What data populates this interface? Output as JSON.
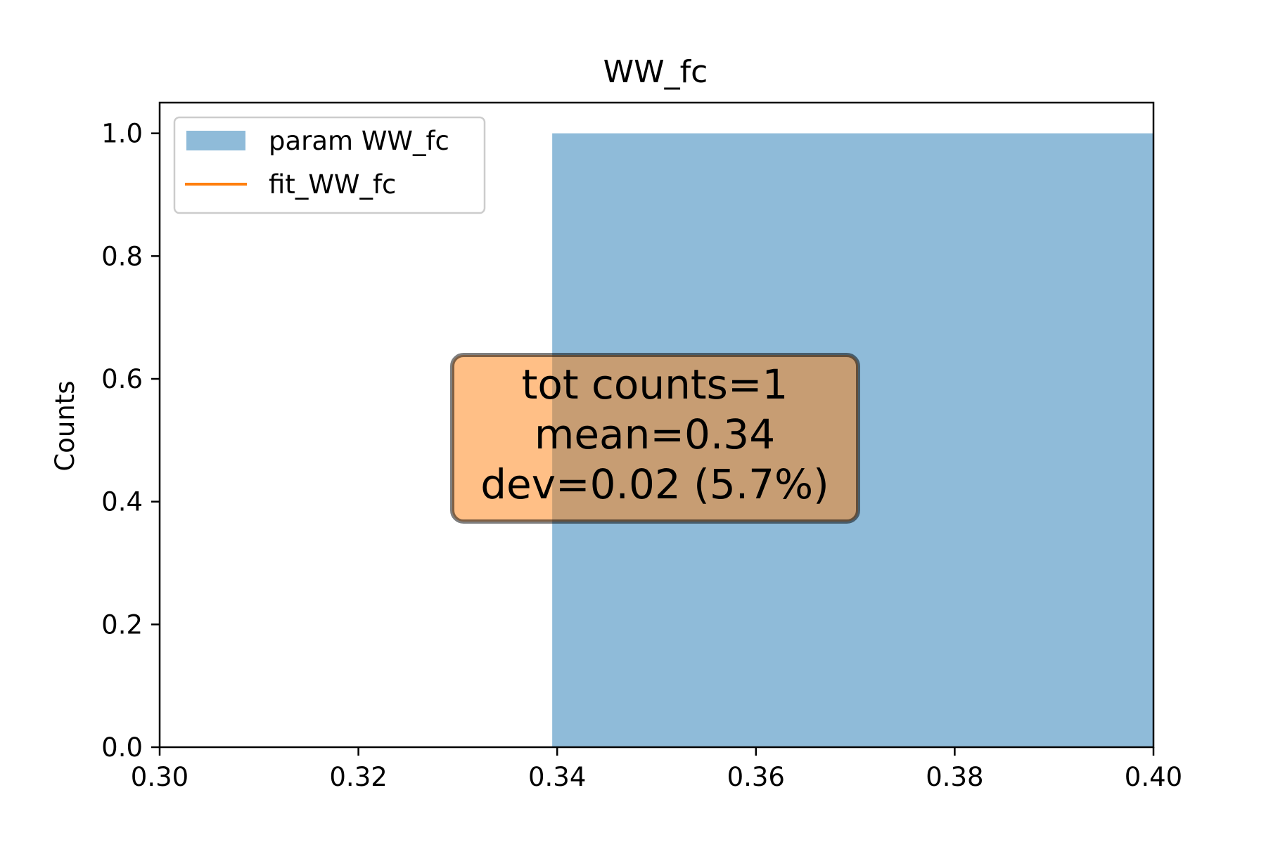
{
  "chart_data": {
    "type": "bar",
    "title": "WW_fc",
    "xlabel": "",
    "ylabel": "Counts",
    "xlim": [
      0.3,
      0.4
    ],
    "ylim": [
      0.0,
      1.05
    ],
    "xticks": [
      "0.30",
      "0.32",
      "0.34",
      "0.36",
      "0.38",
      "0.40"
    ],
    "yticks": [
      "0.0",
      "0.2",
      "0.4",
      "0.6",
      "0.8",
      "1.0"
    ],
    "grid": false,
    "legend_position": "upper-left",
    "series": [
      {
        "name": "param WW_fc",
        "kind": "histogram",
        "color": "#1f77b4",
        "bins": [
          {
            "x0": 0.3395,
            "x1": 0.4,
            "count": 1
          }
        ]
      },
      {
        "name": "fit_WW_fc",
        "kind": "line",
        "color": "#ff7f0e",
        "points": []
      }
    ],
    "annotation": {
      "lines": [
        "tot counts=1",
        "mean=0.34",
        "dev=0.02 (5.7%)"
      ],
      "facecolor": "#ff7f0e",
      "edgecolor": "#000000"
    }
  }
}
